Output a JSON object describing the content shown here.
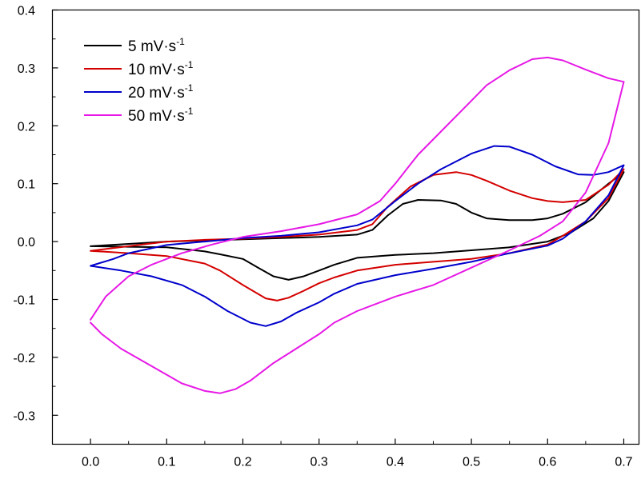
{
  "chart_data": {
    "type": "line",
    "title": "",
    "xlabel": "",
    "ylabel": "",
    "xlim": [
      -0.05,
      0.72
    ],
    "ylim": [
      -0.35,
      0.4
    ],
    "x_ticks": [
      "0.0",
      "0.1",
      "0.2",
      "0.3",
      "0.4",
      "0.5",
      "0.6",
      "0.7"
    ],
    "y_ticks": [
      "-0.3",
      "-0.2",
      "-0.1",
      "0.0",
      "0.1",
      "0.2",
      "0.3",
      "0.4"
    ],
    "grid": false,
    "legend_position": "top-left",
    "series": [
      {
        "name": "5 mV·s",
        "superscript": "-1",
        "color": "#000000",
        "points": [
          [
            0.0,
            -0.008
          ],
          [
            0.05,
            -0.004
          ],
          [
            0.1,
            0.0
          ],
          [
            0.15,
            0.002
          ],
          [
            0.2,
            0.004
          ],
          [
            0.25,
            0.006
          ],
          [
            0.3,
            0.008
          ],
          [
            0.35,
            0.012
          ],
          [
            0.37,
            0.02
          ],
          [
            0.39,
            0.045
          ],
          [
            0.41,
            0.065
          ],
          [
            0.43,
            0.072
          ],
          [
            0.46,
            0.071
          ],
          [
            0.48,
            0.065
          ],
          [
            0.5,
            0.05
          ],
          [
            0.52,
            0.04
          ],
          [
            0.55,
            0.037
          ],
          [
            0.58,
            0.037
          ],
          [
            0.6,
            0.04
          ],
          [
            0.62,
            0.048
          ],
          [
            0.65,
            0.068
          ],
          [
            0.68,
            0.1
          ],
          [
            0.7,
            0.12
          ],
          [
            0.68,
            0.07
          ],
          [
            0.66,
            0.04
          ],
          [
            0.63,
            0.015
          ],
          [
            0.6,
            0.0
          ],
          [
            0.55,
            -0.01
          ],
          [
            0.5,
            -0.015
          ],
          [
            0.45,
            -0.02
          ],
          [
            0.4,
            -0.023
          ],
          [
            0.35,
            -0.028
          ],
          [
            0.32,
            -0.04
          ],
          [
            0.3,
            -0.05
          ],
          [
            0.28,
            -0.06
          ],
          [
            0.26,
            -0.066
          ],
          [
            0.24,
            -0.06
          ],
          [
            0.22,
            -0.045
          ],
          [
            0.2,
            -0.03
          ],
          [
            0.17,
            -0.022
          ],
          [
            0.15,
            -0.017
          ],
          [
            0.1,
            -0.01
          ],
          [
            0.05,
            -0.009
          ],
          [
            0.0,
            -0.008
          ]
        ]
      },
      {
        "name": "10 mV·s",
        "superscript": "-1",
        "color": "#d40000",
        "points": [
          [
            0.0,
            -0.016
          ],
          [
            0.05,
            -0.008
          ],
          [
            0.1,
            0.0
          ],
          [
            0.15,
            0.003
          ],
          [
            0.2,
            0.005
          ],
          [
            0.25,
            0.008
          ],
          [
            0.3,
            0.012
          ],
          [
            0.35,
            0.02
          ],
          [
            0.37,
            0.03
          ],
          [
            0.39,
            0.06
          ],
          [
            0.42,
            0.095
          ],
          [
            0.45,
            0.115
          ],
          [
            0.48,
            0.12
          ],
          [
            0.5,
            0.115
          ],
          [
            0.52,
            0.105
          ],
          [
            0.55,
            0.088
          ],
          [
            0.58,
            0.075
          ],
          [
            0.6,
            0.07
          ],
          [
            0.62,
            0.068
          ],
          [
            0.65,
            0.072
          ],
          [
            0.68,
            0.098
          ],
          [
            0.7,
            0.125
          ],
          [
            0.68,
            0.075
          ],
          [
            0.65,
            0.035
          ],
          [
            0.62,
            0.01
          ],
          [
            0.6,
            -0.005
          ],
          [
            0.55,
            -0.02
          ],
          [
            0.5,
            -0.03
          ],
          [
            0.45,
            -0.035
          ],
          [
            0.4,
            -0.04
          ],
          [
            0.35,
            -0.05
          ],
          [
            0.32,
            -0.062
          ],
          [
            0.3,
            -0.072
          ],
          [
            0.28,
            -0.085
          ],
          [
            0.26,
            -0.097
          ],
          [
            0.245,
            -0.102
          ],
          [
            0.23,
            -0.098
          ],
          [
            0.2,
            -0.075
          ],
          [
            0.17,
            -0.05
          ],
          [
            0.15,
            -0.038
          ],
          [
            0.1,
            -0.025
          ],
          [
            0.05,
            -0.02
          ],
          [
            0.0,
            -0.016
          ]
        ]
      },
      {
        "name": "20 mV·s",
        "superscript": "-1",
        "color": "#0000cc",
        "points": [
          [
            0.0,
            -0.042
          ],
          [
            0.03,
            -0.03
          ],
          [
            0.05,
            -0.02
          ],
          [
            0.1,
            -0.006
          ],
          [
            0.15,
            0.0
          ],
          [
            0.2,
            0.006
          ],
          [
            0.25,
            0.01
          ],
          [
            0.3,
            0.016
          ],
          [
            0.35,
            0.028
          ],
          [
            0.37,
            0.038
          ],
          [
            0.4,
            0.07
          ],
          [
            0.43,
            0.1
          ],
          [
            0.46,
            0.125
          ],
          [
            0.5,
            0.152
          ],
          [
            0.53,
            0.165
          ],
          [
            0.55,
            0.164
          ],
          [
            0.58,
            0.15
          ],
          [
            0.61,
            0.13
          ],
          [
            0.64,
            0.116
          ],
          [
            0.66,
            0.115
          ],
          [
            0.68,
            0.12
          ],
          [
            0.7,
            0.132
          ],
          [
            0.68,
            0.08
          ],
          [
            0.65,
            0.035
          ],
          [
            0.62,
            0.005
          ],
          [
            0.6,
            -0.007
          ],
          [
            0.55,
            -0.02
          ],
          [
            0.5,
            -0.035
          ],
          [
            0.45,
            -0.047
          ],
          [
            0.4,
            -0.058
          ],
          [
            0.35,
            -0.073
          ],
          [
            0.32,
            -0.09
          ],
          [
            0.3,
            -0.105
          ],
          [
            0.27,
            -0.123
          ],
          [
            0.25,
            -0.138
          ],
          [
            0.23,
            -0.146
          ],
          [
            0.21,
            -0.14
          ],
          [
            0.18,
            -0.12
          ],
          [
            0.15,
            -0.095
          ],
          [
            0.12,
            -0.075
          ],
          [
            0.08,
            -0.06
          ],
          [
            0.04,
            -0.05
          ],
          [
            0.0,
            -0.042
          ]
        ]
      },
      {
        "name": "50 mV·s",
        "superscript": "-1",
        "color": "#e619e6",
        "points": [
          [
            0.0,
            -0.135
          ],
          [
            0.02,
            -0.095
          ],
          [
            0.05,
            -0.06
          ],
          [
            0.08,
            -0.04
          ],
          [
            0.12,
            -0.02
          ],
          [
            0.16,
            -0.005
          ],
          [
            0.2,
            0.008
          ],
          [
            0.25,
            0.018
          ],
          [
            0.3,
            0.03
          ],
          [
            0.35,
            0.047
          ],
          [
            0.38,
            0.07
          ],
          [
            0.4,
            0.1
          ],
          [
            0.43,
            0.15
          ],
          [
            0.46,
            0.19
          ],
          [
            0.49,
            0.23
          ],
          [
            0.52,
            0.27
          ],
          [
            0.55,
            0.296
          ],
          [
            0.58,
            0.315
          ],
          [
            0.6,
            0.318
          ],
          [
            0.62,
            0.313
          ],
          [
            0.65,
            0.297
          ],
          [
            0.68,
            0.282
          ],
          [
            0.7,
            0.276
          ],
          [
            0.68,
            0.17
          ],
          [
            0.65,
            0.085
          ],
          [
            0.62,
            0.035
          ],
          [
            0.59,
            0.01
          ],
          [
            0.55,
            -0.015
          ],
          [
            0.5,
            -0.045
          ],
          [
            0.45,
            -0.075
          ],
          [
            0.4,
            -0.095
          ],
          [
            0.35,
            -0.12
          ],
          [
            0.32,
            -0.14
          ],
          [
            0.3,
            -0.16
          ],
          [
            0.27,
            -0.185
          ],
          [
            0.24,
            -0.21
          ],
          [
            0.21,
            -0.24
          ],
          [
            0.19,
            -0.255
          ],
          [
            0.17,
            -0.262
          ],
          [
            0.15,
            -0.258
          ],
          [
            0.12,
            -0.245
          ],
          [
            0.08,
            -0.215
          ],
          [
            0.04,
            -0.185
          ],
          [
            0.015,
            -0.16
          ],
          [
            0.0,
            -0.14
          ]
        ]
      }
    ]
  }
}
